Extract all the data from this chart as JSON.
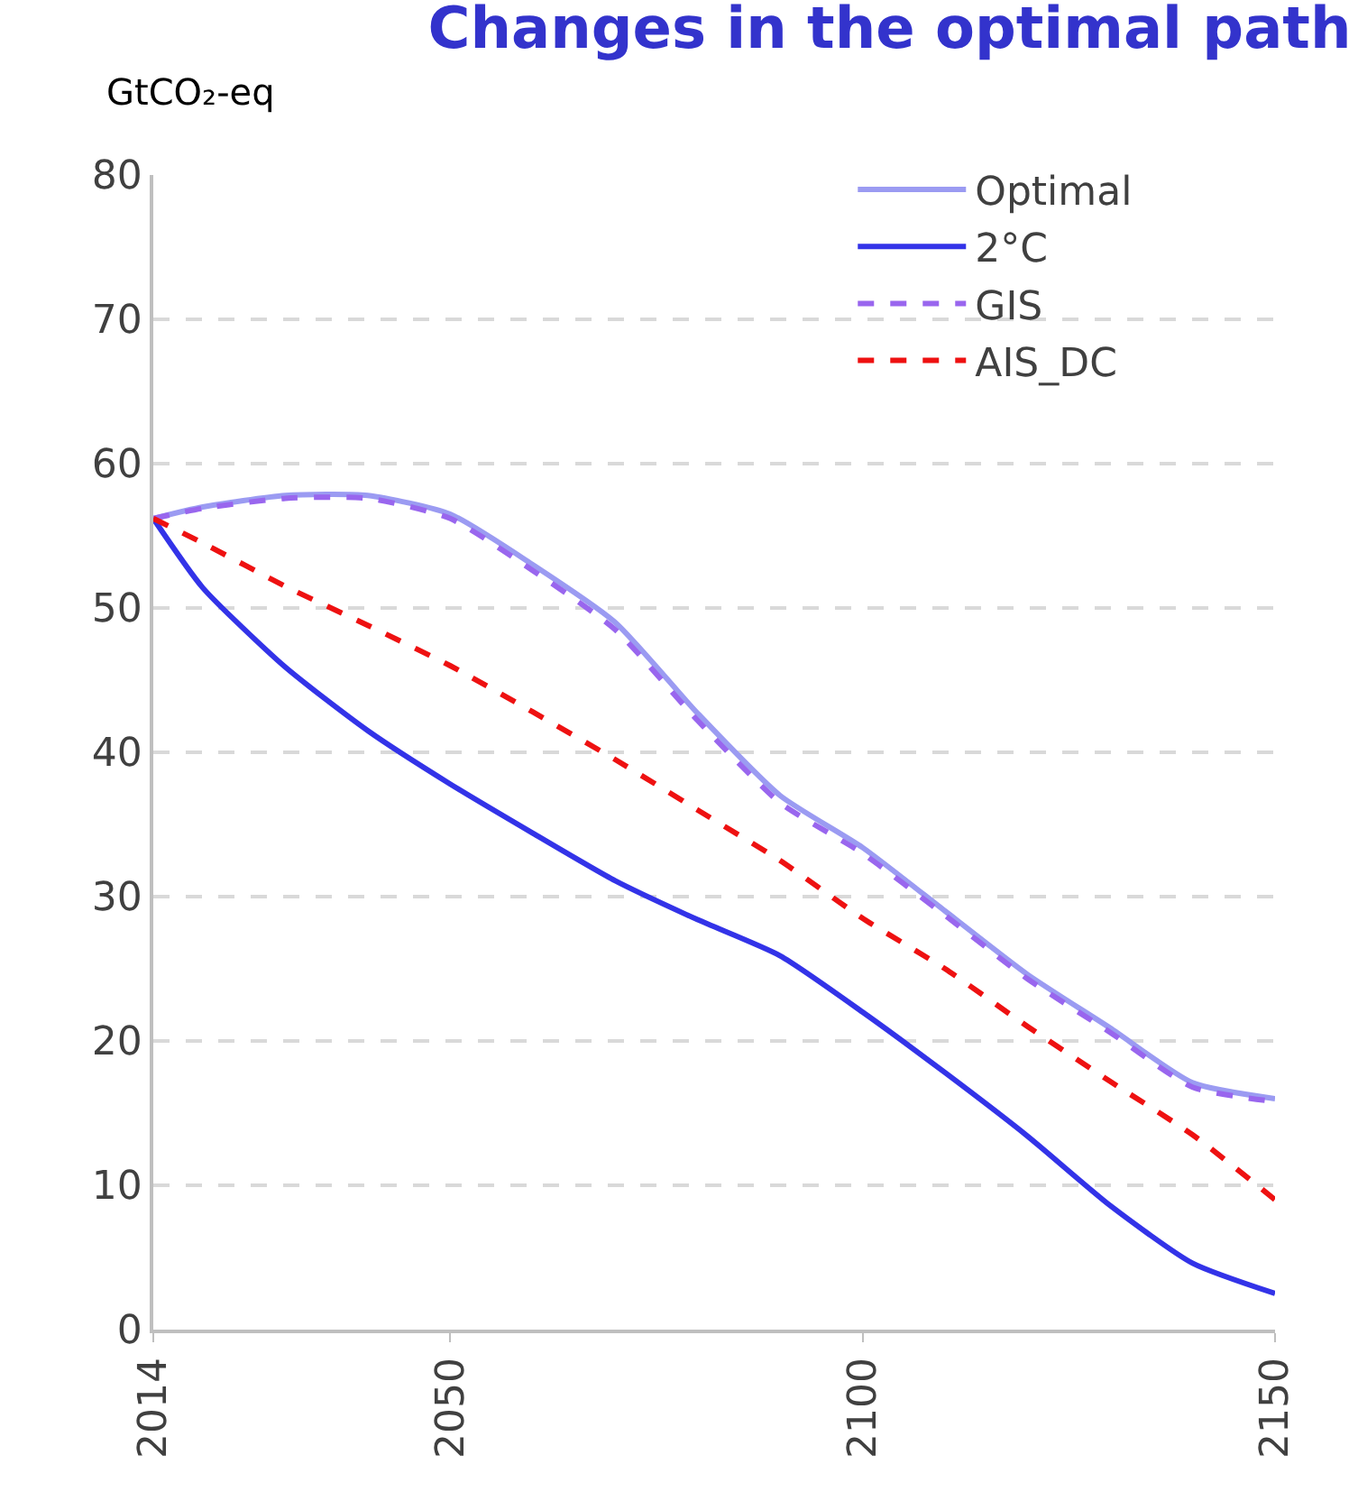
{
  "chart_data": {
    "type": "line",
    "title": "Changes in the optimal path",
    "ylabel": "GtCO₂-eq",
    "x": [
      2014,
      2020,
      2030,
      2040,
      2050,
      2060,
      2070,
      2080,
      2090,
      2100,
      2110,
      2120,
      2130,
      2140,
      2150
    ],
    "series": [
      {
        "name": "Optimal",
        "color": "#9b9bf2",
        "values": [
          56.2,
          57,
          57.8,
          57.8,
          56.5,
          53,
          49,
          42.7,
          37,
          33.4,
          29,
          24.6,
          20.9,
          17.1,
          16
        ]
      },
      {
        "name": "2°C",
        "color": "#3333e8",
        "values": [
          56.2,
          51.4,
          45.9,
          41.5,
          37.8,
          34.4,
          31.1,
          28.4,
          25.9,
          22,
          17.8,
          13.4,
          8.6,
          4.6,
          2.5
        ]
      },
      {
        "name": "GIS",
        "color": "#9966ee",
        "line_style": "dashed",
        "values": [
          56.2,
          56.9,
          57.6,
          57.6,
          56.2,
          52.6,
          48.5,
          42.2,
          36.5,
          33,
          28.7,
          24.3,
          20.6,
          16.8,
          15.8
        ]
      },
      {
        "name": "AIS_DC",
        "color": "#ee1111",
        "line_style": "dashed",
        "values": [
          56.2,
          54.5,
          51.5,
          48.8,
          46,
          42.8,
          39.5,
          36,
          32.5,
          28.5,
          25,
          21,
          17.2,
          13.5,
          9
        ]
      }
    ],
    "xlim": [
      2014,
      2150
    ],
    "xticks": [
      2014,
      2050,
      2100,
      2150
    ],
    "ylim": [
      0,
      80
    ],
    "yticks": [
      0,
      10,
      20,
      30,
      40,
      50,
      60,
      70,
      80
    ],
    "grid": "y",
    "legend": "top right",
    "line_style": "solid",
    "marker": "none"
  }
}
